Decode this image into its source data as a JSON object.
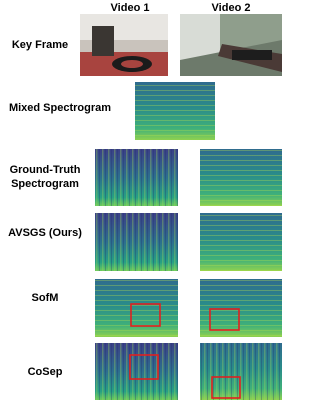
{
  "header": {
    "columns": [
      "Video 1",
      "Video 2"
    ]
  },
  "rows": [
    {
      "label": "Key Frame"
    },
    {
      "label": "Mixed Spectrogram"
    },
    {
      "label_lines": [
        "Ground-Truth",
        "Spectrogram"
      ]
    },
    {
      "label": "AVSGS (Ours)"
    },
    {
      "label": "SofM"
    },
    {
      "label": "CoSep"
    }
  ]
}
